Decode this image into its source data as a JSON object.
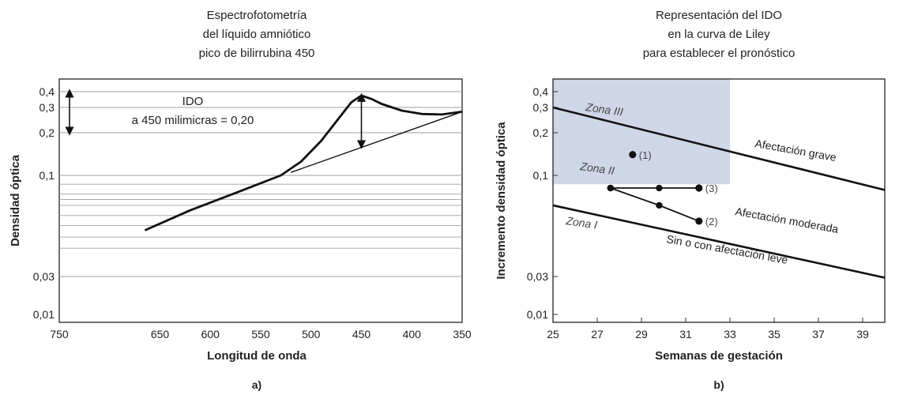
{
  "chart_data": [
    {
      "type": "line",
      "panel_label": "a)",
      "title": [
        "Espectrofotometría",
        "del líquido amniótico",
        "pico de bilirrubina 450"
      ],
      "xlabel": "Longitud de onda",
      "ylabel": "Densidad óptica",
      "xlim": [
        750,
        350
      ],
      "x_ticks": [
        "750",
        "650",
        "600",
        "550",
        "500",
        "450",
        "400",
        "350"
      ],
      "y_ticks": [
        "0,4",
        "0,3",
        "0,2",
        "0,1",
        "0,03",
        "0,01"
      ],
      "annotation": [
        "IDO",
        "a 450 milimicras = 0,20"
      ],
      "series": [
        {
          "x": [
            665,
            620,
            570,
            530,
            510,
            490,
            470,
            460,
            450,
            440,
            430,
            410,
            390,
            370,
            350
          ],
          "y": [
            0.052,
            0.066,
            0.083,
            0.1,
            0.125,
            0.175,
            0.265,
            0.33,
            0.372,
            0.35,
            0.32,
            0.285,
            0.27,
            0.268,
            0.28
          ]
        },
        {
          "x": [
            520,
            350
          ],
          "y": [
            0.105,
            0.28
          ]
        }
      ]
    },
    {
      "type": "line",
      "panel_label": "b)",
      "title": [
        "Representación del IDO",
        "en la curva de Liley",
        "para establecer el pronóstico"
      ],
      "xlabel": "Semanas de gestación",
      "ylabel": "Incremento densidad óptica",
      "xlim": [
        25,
        40
      ],
      "x_ticks": [
        "25",
        "27",
        "29",
        "31",
        "33",
        "35",
        "37",
        "39"
      ],
      "y_ticks": [
        "0,4",
        "0,3",
        "0,2",
        "0,1",
        "0,03",
        "0,01"
      ],
      "zones": [
        "Zona III",
        "Zona II",
        "Zona I"
      ],
      "band_labels": [
        "Afectación grave",
        "Afectación moderada",
        "Sin o con afectación leve"
      ],
      "boundaries": [
        {
          "x": [
            25,
            40
          ],
          "y": [
            0.3,
            0.084
          ]
        },
        {
          "x": [
            25,
            40
          ],
          "y": [
            0.07,
            0.029
          ]
        }
      ],
      "shaded_region": {
        "x": [
          25,
          33
        ],
        "y": [
          0.09,
          0.5
        ]
      },
      "points": [
        {
          "label": "(1)",
          "x": 28.6,
          "y": 0.14
        },
        {
          "label": "(2)",
          "x": 31.6,
          "y": 0.058
        },
        {
          "label": "(3)",
          "x": 31.6,
          "y": 0.086
        }
      ],
      "paths": [
        {
          "x": [
            27.6,
            29.8,
            31.6
          ],
          "y": [
            0.086,
            0.086,
            0.086
          ]
        },
        {
          "x": [
            27.6,
            29.8,
            31.6
          ],
          "y": [
            0.086,
            0.07,
            0.058
          ]
        }
      ]
    }
  ]
}
